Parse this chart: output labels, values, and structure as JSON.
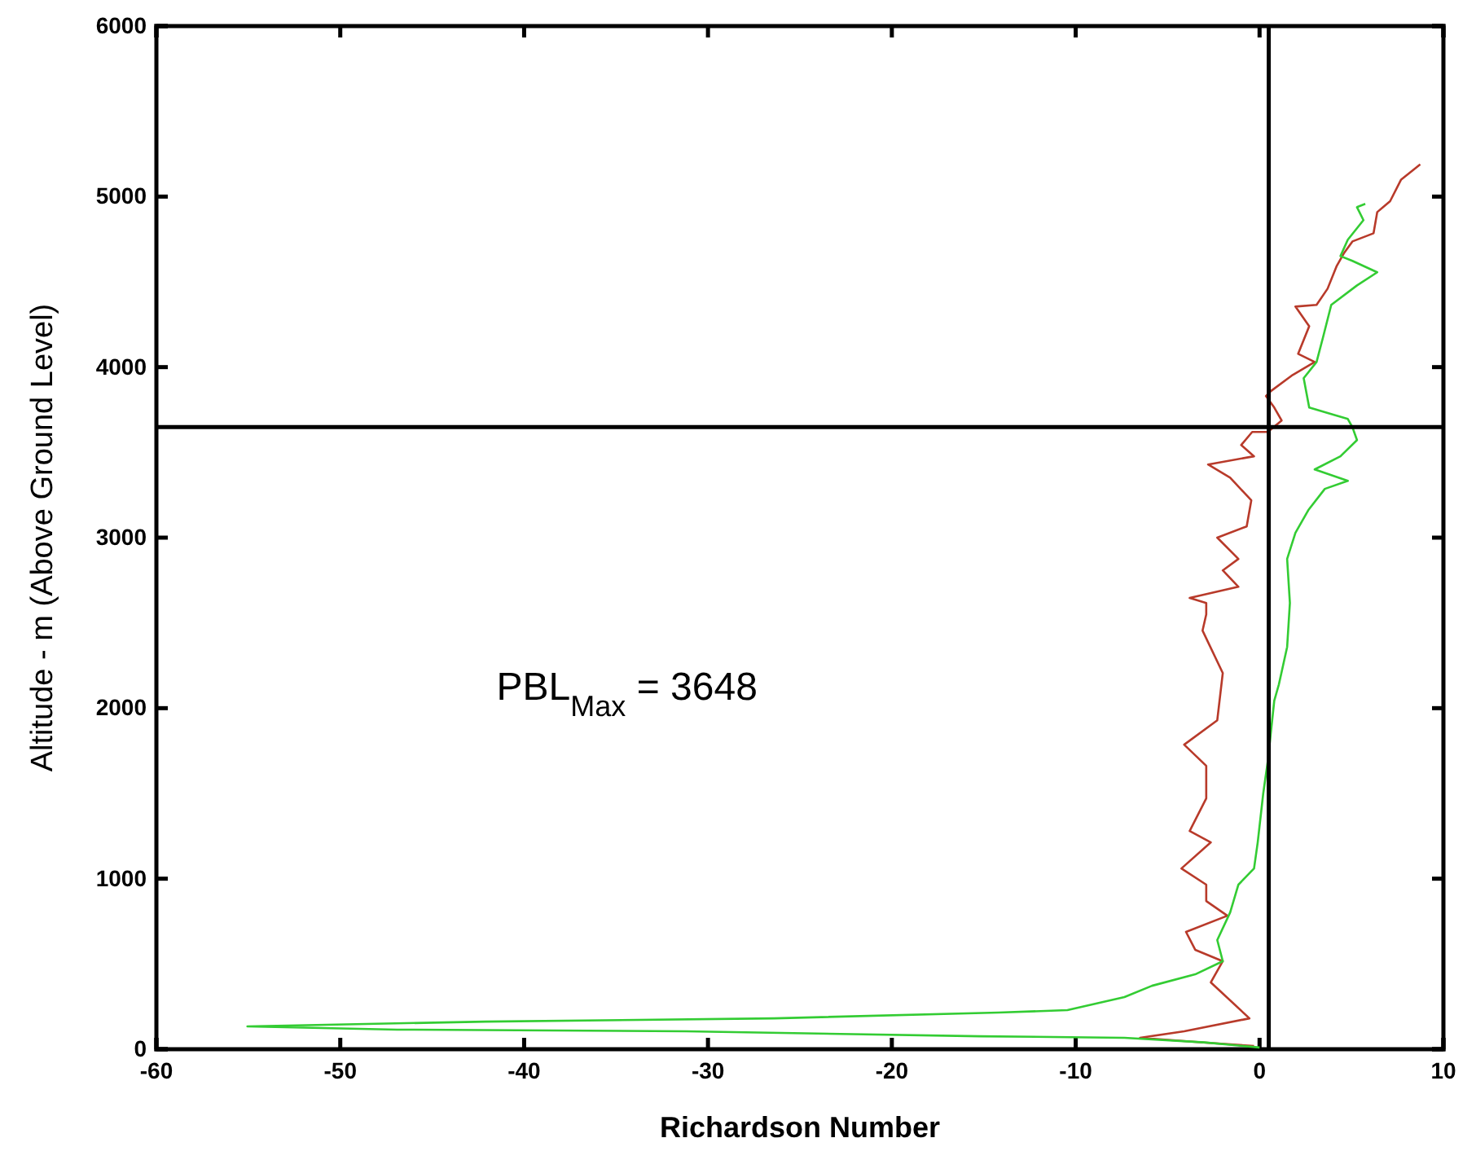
{
  "chart_data": {
    "type": "line",
    "xlabel": "Richardson Number",
    "ylabel": "Altitude - m (Above Ground Level)",
    "xlim": [
      -60,
      10
    ],
    "xticks": [
      -60,
      -50,
      -40,
      -30,
      -20,
      -10,
      0,
      10
    ],
    "ylim": [
      0,
      6000
    ],
    "yticks": [
      0,
      1000,
      2000,
      3000,
      4000,
      5000,
      6000
    ],
    "grid": false,
    "marker": "none",
    "line_style": "solid",
    "ref_lines": [
      {
        "axis": "x",
        "value": 0.5,
        "color": "#000000"
      },
      {
        "axis": "y",
        "value": 3648,
        "color": "#000000"
      }
    ],
    "annotations": [
      "PBL$_{Max}$ = 3648"
    ],
    "series": [
      {
        "color": "#b83a2a",
        "x": [
          -0.3,
          -2.9,
          -6.5,
          -4.1,
          -0.55,
          -2.65,
          -2.0,
          -3.5,
          -4.0,
          -1.75,
          -2.9,
          -2.9,
          -4.25,
          -2.65,
          -3.8,
          -2.9,
          -2.9,
          -4.1,
          -2.3,
          -2.0,
          -3.1,
          -2.9,
          -2.9,
          -3.8,
          -1.15,
          -2.0,
          -1.15,
          -2.3,
          -0.7,
          -0.45,
          -1.6,
          -2.8,
          -0.3,
          -1.0,
          -0.4,
          0.45,
          1.2,
          0.8,
          0.35,
          0.6,
          1.8,
          3.0,
          2.1,
          2.7,
          1.95,
          3.1,
          3.7,
          4.2,
          4.6,
          5.05,
          6.2,
          6.4,
          7.1,
          7.7,
          8.74
        ],
        "values": [
          19,
          38,
          67,
          105,
          181,
          392,
          516,
          583,
          688,
          783,
          869,
          965,
          1060,
          1213,
          1280,
          1471,
          1662,
          1786,
          1929,
          2206,
          2455,
          2550,
          2617,
          2646,
          2712,
          2808,
          2875,
          3000,
          3066,
          3219,
          3352,
          3429,
          3477,
          3543,
          3620,
          3620,
          3687,
          3763,
          3830,
          3858,
          3954,
          4030,
          4078,
          4240,
          4355,
          4365,
          4460,
          4594,
          4670,
          4737,
          4785,
          4909,
          4973,
          5100,
          5189
        ]
      },
      {
        "color": "#33cc33",
        "x": [
          0,
          -3,
          -7.35,
          -15.2,
          -31.2,
          -46.9,
          -55.05,
          -42.1,
          -26.4,
          -14.2,
          -10.45,
          -7.35,
          -5.85,
          -3.5,
          -2.0,
          -2.3,
          -1.6,
          -1.15,
          -0.3,
          -0.1,
          0.2,
          0.45,
          0.8,
          1.05,
          1.5,
          1.65,
          1.5,
          1.95,
          2.65,
          3.55,
          4.8,
          3.0,
          4.4,
          5.3,
          5.05,
          4.8,
          2.7,
          2.4,
          3.1,
          3.45,
          3.9,
          5.3,
          6.4,
          5.05,
          4.4,
          4.8,
          5.65,
          5.3,
          5.75
        ],
        "values": [
          10,
          40,
          67,
          76,
          105,
          115,
          134,
          162,
          181,
          215,
          229,
          306,
          372,
          439,
          516,
          640,
          802,
          965,
          1060,
          1213,
          1500,
          1690,
          2044,
          2139,
          2359,
          2617,
          2875,
          3028,
          3161,
          3286,
          3333,
          3400,
          3477,
          3572,
          3648,
          3696,
          3763,
          3935,
          4030,
          4174,
          4365,
          4479,
          4556,
          4623,
          4651,
          4747,
          4862,
          4938,
          4957
        ]
      }
    ]
  }
}
